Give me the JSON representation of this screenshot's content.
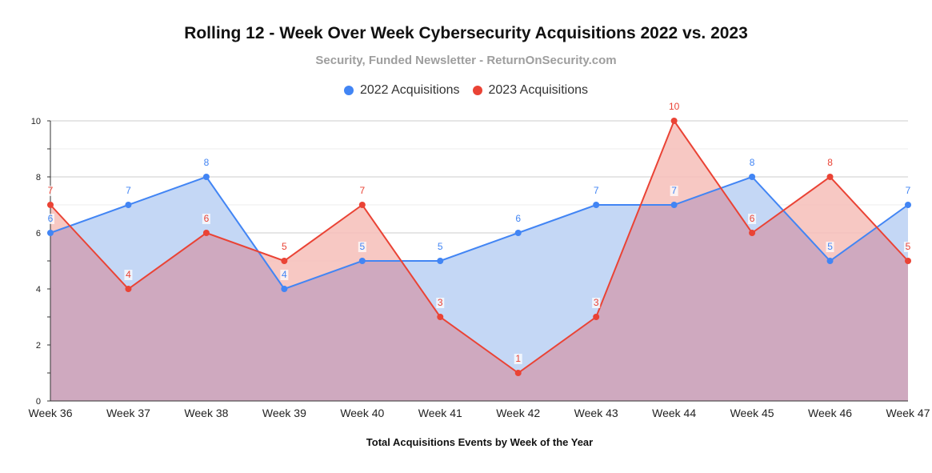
{
  "chart_data": {
    "type": "area",
    "title": "Rolling 12 - Week Over Week Cybersecurity Acquisitions 2022 vs. 2023",
    "subtitle": "Security, Funded Newsletter - ReturnOnSecurity.com",
    "xlabel": "Total Acquisitions Events by Week of the Year",
    "ylabel": "",
    "categories": [
      "Week 36",
      "Week 37",
      "Week 38",
      "Week 39",
      "Week 40",
      "Week 41",
      "Week 42",
      "Week 43",
      "Week 44",
      "Week 45",
      "Week 46",
      "Week 47"
    ],
    "series": [
      {
        "name": "2022 Acquisitions",
        "color": "#4285f4",
        "fill": "#c4d7f5",
        "values": [
          6,
          7,
          8,
          4,
          5,
          5,
          6,
          7,
          7,
          8,
          5,
          7
        ]
      },
      {
        "name": "2023 Acquisitions",
        "color": "#ea4335",
        "fill": "#f6beb9",
        "values": [
          7,
          4,
          6,
          5,
          7,
          3,
          1,
          3,
          10,
          6,
          8,
          5
        ]
      }
    ],
    "ylim": [
      0,
      10
    ],
    "yticks": [
      "0",
      "2",
      "4",
      "6",
      "8",
      "10"
    ],
    "grid": true,
    "legend": "top-center",
    "overlap_fill": "#cfa9bf"
  }
}
